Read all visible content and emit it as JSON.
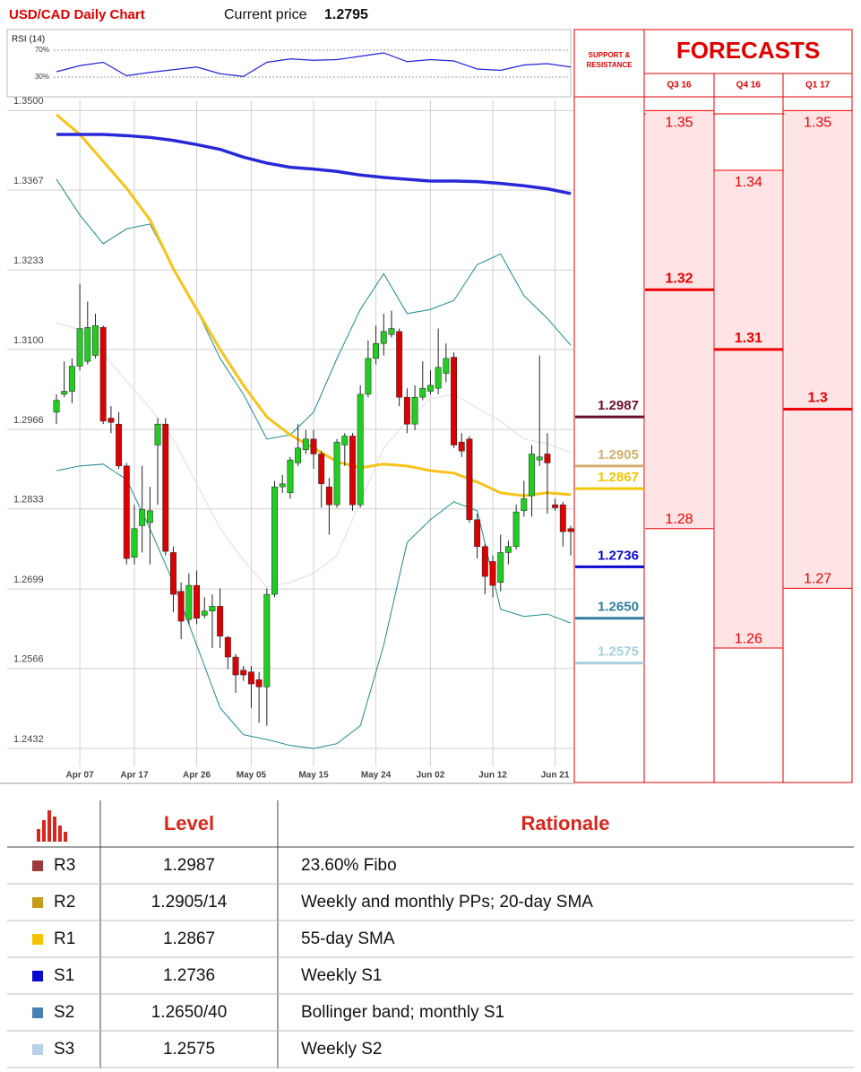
{
  "header": {
    "title": "USD/CAD Daily Chart",
    "price_label": "Current price",
    "price": 1.2795
  },
  "chart_data": [
    {
      "type": "rsi",
      "title": "RSI (14)",
      "ylim": [
        2,
        98
      ],
      "yticks": [
        {
          "value": 70,
          "label": "70%"
        },
        {
          "value": 30,
          "label": "30%"
        }
      ],
      "series": [
        {
          "color": "#2323d8",
          "x": [
            0,
            3,
            6,
            9,
            12,
            15,
            18,
            21,
            24,
            27,
            30,
            33,
            36,
            39,
            42,
            45,
            48,
            51,
            54,
            57,
            60,
            63,
            66
          ],
          "values": [
            38,
            47,
            52,
            32,
            37,
            41,
            45,
            35,
            31,
            52,
            57,
            55,
            56,
            61,
            66,
            53,
            56,
            54,
            42,
            40,
            48,
            50,
            45
          ]
        }
      ]
    },
    {
      "type": "candlestick",
      "up_color": "#22cc22",
      "down_color": "#dd0000",
      "categories": [
        null,
        null,
        null,
        "Apr 07",
        null,
        null,
        null,
        null,
        null,
        null,
        "Apr 17",
        null,
        null,
        null,
        null,
        null,
        null,
        null,
        "Apr 26",
        null,
        null,
        null,
        null,
        null,
        null,
        "May 05",
        null,
        null,
        null,
        null,
        null,
        null,
        null,
        "May 15",
        null,
        null,
        null,
        null,
        null,
        null,
        null,
        "May 24",
        null,
        null,
        null,
        null,
        null,
        null,
        "Jun 02",
        null,
        null,
        null,
        null,
        null,
        null,
        null,
        "Jun 12",
        null,
        null,
        null,
        null,
        null,
        null,
        null,
        "Jun 21",
        null,
        null
      ],
      "open": [
        1.2995,
        1.3025,
        1.303,
        1.3072,
        1.308,
        1.309,
        1.3137,
        1.2985,
        1.2975,
        1.2905,
        1.2752,
        1.2805,
        1.281,
        1.294,
        1.2975,
        1.276,
        1.2695,
        1.2648,
        1.2705,
        1.2655,
        1.2662,
        1.267,
        1.2618,
        1.2585,
        1.2563,
        1.256,
        1.2547,
        1.2535,
        1.269,
        1.287,
        1.286,
        1.291,
        1.2932,
        1.295,
        1.2925,
        1.287,
        1.284,
        1.294,
        1.2955,
        1.284,
        1.3025,
        1.3085,
        1.311,
        1.3125,
        1.313,
        1.302,
        1.2975,
        1.302,
        1.303,
        1.3035,
        1.306,
        1.3087,
        1.2945,
        1.295,
        1.2815,
        1.277,
        1.2745,
        1.271,
        1.276,
        1.277,
        1.283,
        1.2855,
        1.2915,
        1.2925,
        1.284,
        1.284,
        1.28
      ],
      "high": [
        1.3025,
        1.308,
        1.3085,
        1.321,
        1.318,
        1.316,
        1.314,
        1.3005,
        1.2995,
        1.291,
        1.284,
        1.2905,
        1.287,
        1.2985,
        1.2985,
        1.277,
        1.271,
        1.2725,
        1.273,
        1.2685,
        1.269,
        1.27,
        1.262,
        1.259,
        1.257,
        1.257,
        1.256,
        1.27,
        1.288,
        1.289,
        1.292,
        1.2975,
        1.2965,
        1.2965,
        1.293,
        1.2885,
        1.295,
        1.296,
        1.296,
        1.304,
        1.3115,
        1.314,
        1.316,
        1.3165,
        1.3135,
        1.3035,
        1.304,
        1.308,
        1.3065,
        1.3135,
        1.311,
        1.3095,
        1.296,
        1.2955,
        1.2825,
        1.2775,
        1.2755,
        1.279,
        1.278,
        1.284,
        1.288,
        1.294,
        1.309,
        1.296,
        1.285,
        1.2845,
        1.2805
      ],
      "low": [
        1.2975,
        1.302,
        1.301,
        1.3065,
        1.3075,
        1.3085,
        1.2975,
        1.296,
        1.29,
        1.274,
        1.274,
        1.276,
        1.274,
        1.284,
        1.2755,
        1.266,
        1.2615,
        1.264,
        1.264,
        1.265,
        1.26,
        1.26,
        1.2565,
        1.2525,
        1.2545,
        1.25,
        1.2475,
        1.247,
        1.2685,
        1.286,
        1.285,
        1.2905,
        1.2925,
        1.29,
        1.2835,
        1.279,
        1.2835,
        1.2905,
        1.283,
        1.2835,
        1.302,
        1.3075,
        1.309,
        1.312,
        1.3005,
        1.296,
        1.2965,
        1.3015,
        1.3025,
        1.3025,
        1.3045,
        1.2935,
        1.292,
        1.281,
        1.275,
        1.269,
        1.2685,
        1.2695,
        1.274,
        1.2765,
        1.282,
        1.282,
        1.2905,
        1.2825,
        1.283,
        1.277,
        1.2755
      ],
      "close": [
        1.3015,
        1.303,
        1.3072,
        1.3135,
        1.3137,
        1.314,
        1.298,
        1.2978,
        1.2905,
        1.275,
        1.28,
        1.2832,
        1.283,
        1.2975,
        1.2762,
        1.269,
        1.2645,
        1.2705,
        1.265,
        1.2662,
        1.267,
        1.262,
        1.2585,
        1.2555,
        1.2555,
        1.254,
        1.2535,
        1.269,
        1.287,
        1.2875,
        1.2915,
        1.2935,
        1.295,
        1.2925,
        1.2875,
        1.284,
        1.2945,
        1.2955,
        1.284,
        1.3025,
        1.3085,
        1.311,
        1.313,
        1.3135,
        1.302,
        1.2975,
        1.302,
        1.3035,
        1.304,
        1.307,
        1.3085,
        1.294,
        1.293,
        1.2815,
        1.277,
        1.272,
        1.2705,
        1.276,
        1.277,
        1.2828,
        1.285,
        1.2925,
        1.292,
        1.291,
        1.2835,
        1.2795,
        1.2795
      ],
      "overlays": [
        {
          "color": "#dddddd",
          "width": 1,
          "x": [
            0,
            3,
            6,
            9,
            12,
            15,
            18,
            21,
            24,
            27,
            30,
            33,
            36,
            39,
            42,
            45,
            48,
            51,
            54,
            57,
            60,
            63,
            66
          ],
          "values": [
            1.3145,
            1.3133,
            1.3092,
            1.3047,
            1.3002,
            1.295,
            1.2875,
            1.28,
            1.2747,
            1.2702,
            1.271,
            1.2725,
            1.2755,
            1.2845,
            1.2935,
            1.298,
            1.3017,
            1.3025,
            1.3002,
            1.298,
            1.295,
            1.2942,
            1.2927
          ]
        },
        {
          "color": "#1f8a8a",
          "width": 1,
          "x": [
            0,
            3,
            6,
            9,
            12,
            15,
            18,
            21,
            24,
            27,
            30,
            33,
            36,
            39,
            42,
            45,
            48,
            51,
            54,
            57,
            60,
            63,
            66
          ],
          "values": [
            1.3385,
            1.3325,
            1.3277,
            1.3302,
            1.331,
            1.3235,
            1.3167,
            1.3085,
            1.3025,
            1.295,
            1.2957,
            1.2995,
            1.3085,
            1.3167,
            1.3227,
            1.316,
            1.3167,
            1.3182,
            1.3242,
            1.326,
            1.319,
            1.3152,
            1.3107
          ]
        },
        {
          "color": "#1f8a8a",
          "width": 1,
          "x": [
            0,
            3,
            6,
            9,
            12,
            15,
            18,
            21,
            24,
            27,
            30,
            33,
            36,
            39,
            42,
            45,
            48,
            51,
            54,
            57,
            60,
            63,
            66
          ],
          "values": [
            1.2897,
            1.2905,
            1.2908,
            1.2882,
            1.28,
            1.271,
            1.2605,
            1.25,
            1.2455,
            1.2447,
            1.2437,
            1.2432,
            1.244,
            1.247,
            1.2605,
            1.2777,
            1.2815,
            1.2845,
            1.283,
            1.2665,
            1.2653,
            1.2657,
            1.2642
          ]
        },
        {
          "color": "#f7c21a",
          "width": 3,
          "x": [
            0,
            3,
            6,
            9,
            12,
            15,
            18,
            21,
            24,
            27,
            30,
            33,
            36,
            39,
            42,
            45,
            48,
            51,
            54,
            57,
            60,
            63,
            66
          ],
          "values": [
            1.3493,
            1.346,
            1.3415,
            1.337,
            1.3317,
            1.3235,
            1.3167,
            1.31,
            1.304,
            1.2987,
            1.2957,
            1.2935,
            1.2912,
            1.2902,
            1.2908,
            1.2905,
            1.2897,
            1.2893,
            1.2878,
            1.286,
            1.2855,
            1.286,
            1.2857
          ]
        },
        {
          "color": "#2828d8",
          "width": 3.5,
          "x": [
            0,
            3,
            6,
            9,
            12,
            15,
            18,
            21,
            24,
            27,
            30,
            33,
            36,
            39,
            42,
            45,
            48,
            51,
            54,
            57,
            60,
            63,
            66
          ],
          "values": [
            1.346,
            1.346,
            1.346,
            1.3458,
            1.3455,
            1.345,
            1.3443,
            1.3435,
            1.3422,
            1.3412,
            1.3405,
            1.3402,
            1.3398,
            1.3392,
            1.3388,
            1.3385,
            1.3382,
            1.3382,
            1.3381,
            1.3378,
            1.3374,
            1.3369,
            1.3361
          ]
        }
      ],
      "ylim": [
        1.2402,
        1.3517
      ],
      "yticks": [
        {
          "value": 1.35,
          "label": "1.3500"
        },
        1.3367,
        1.3233,
        {
          "value": 1.31,
          "label": "1.3100"
        },
        1.2966,
        1.2833,
        1.2699,
        1.2566,
        1.2432
      ],
      "grid": true
    },
    {
      "type": "levels",
      "title": "SUPPORT & RESISTANCE",
      "values": [
        1.2987,
        1.2905,
        1.2867,
        1.2736,
        1.265,
        1.2575
      ],
      "value_labels": [
        "1.2987",
        "1.2905",
        "1.2867",
        "1.2736",
        "1.2650",
        "1.2575"
      ],
      "colors": [
        "#6b0e2e",
        "#d4b06c",
        "#f5c400",
        "#0a0ad0",
        "#2f7fa0",
        "#a9d0dc"
      ],
      "ylim": [
        1.2402,
        1.3517
      ]
    },
    {
      "type": "range",
      "title": "FORECASTS",
      "categories": [
        "Q3 16",
        "Q4 16",
        "Q1 17"
      ],
      "high": [
        1.35,
        1.34,
        1.35
      ],
      "mid": [
        1.32,
        1.31,
        1.3
      ],
      "low": [
        1.28,
        1.26,
        1.27
      ],
      "color": "#ee0000",
      "fill": "#ffe4e6",
      "ylim": [
        1.2402,
        1.3517
      ]
    }
  ],
  "table": {
    "header": [
      "Level",
      "Rationale"
    ],
    "rows": [
      [
        "R3",
        "1.2987",
        "23.60% Fibo"
      ],
      [
        "R2",
        "1.2905/14",
        "Weekly and monthly PPs; 20-day SMA"
      ],
      [
        "R1",
        "1.2867",
        "55-day SMA"
      ],
      [
        "S1",
        "1.2736",
        "Weekly S1"
      ],
      [
        "S2",
        "1.2650/40",
        "Bollinger band; monthly S1"
      ],
      [
        "S3",
        "1.2575",
        "Weekly S2"
      ]
    ],
    "colors": [
      "#9b3a3a",
      "#c89a1a",
      "#f5c400",
      "#0a0ad0",
      "#4a7fb5",
      "#b8d0e8"
    ]
  }
}
